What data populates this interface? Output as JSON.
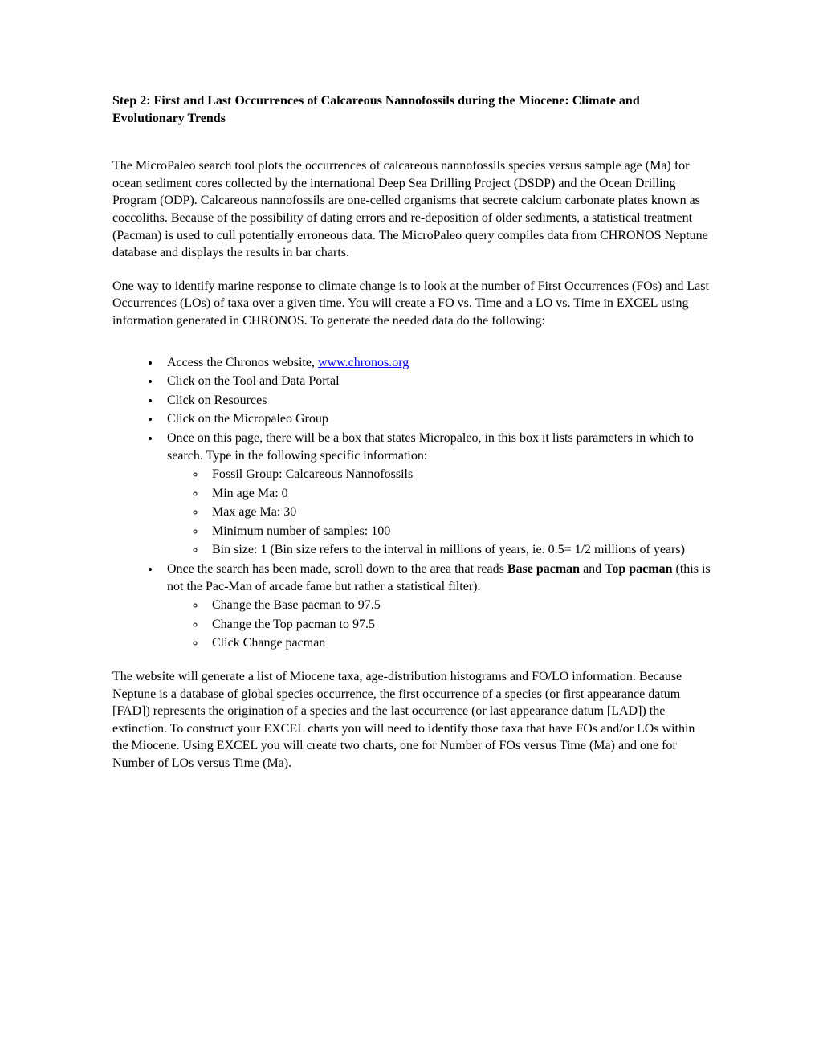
{
  "title": "Step 2: First and Last Occurrences of Calcareous Nannofossils during the Miocene: Climate and Evolutionary Trends",
  "paragraph1": "The MicroPaleo search tool plots the occurrences of calcareous nannofossils species versus sample age (Ma) for ocean sediment cores collected by the international Deep Sea Drilling Project (DSDP) and the Ocean Drilling Program (ODP).  Calcareous nannofossils are one-celled organisms that secrete calcium carbonate plates known as coccoliths.  Because of the possibility of dating errors and re-deposition of older sediments, a statistical treatment (Pacman) is used to cull potentially erroneous data. The MicroPaleo query compiles data from CHRONOS Neptune database and displays the results in bar charts.",
  "paragraph2": "One way to identify marine response to climate change is to look at the number of First Occurrences (FOs) and Last Occurrences (LOs) of taxa over a given time.  You will create a FO vs. Time and a LO vs. Time in EXCEL using information generated in CHRONOS.   To generate the needed data do the following:",
  "bullets": {
    "b1_pre": "Access the Chronos website, ",
    "b1_link": "www.chronos.org",
    "b2": "Click on the Tool and Data Portal",
    "b3": "Click on Resources",
    "b4": "Click on the Micropaleo Group",
    "b5": "Once on this page, there will be a box that states Micropaleo, in this box it lists parameters in which to search.  Type in the following specific information:",
    "b5_sub": {
      "s1_pre": "Fossil Group: ",
      "s1_under": "Calcareous Nannofossils",
      "s2": "Min age Ma:  0",
      "s3": "Max age Ma:  30",
      "s4": "Minimum number of samples: 100",
      "s5": " Bin size:  1  (Bin size refers to the interval in millions of years, ie. 0.5= 1/2 millions of years)"
    },
    "b6_pre": "Once the search has been made, scroll down to the area that reads ",
    "b6_bold1": "Base pacman",
    "b6_mid": " and ",
    "b6_bold2": "Top pacman",
    "b6_post": " (this is not the Pac-Man of arcade fame but rather a statistical filter).",
    "b6_sub": {
      "s1": "Change the Base pacman to 97.5",
      "s2": "Change the Top pacman to 97.5",
      "s3": "Click Change pacman"
    }
  },
  "paragraph3": "The website will generate a list of Miocene taxa, age-distribution histograms and FO/LO information.  Because Neptune is a database of global species occurrence, the first occurrence of a species (or first appearance datum [FAD]) represents the origination of a species and the last occurrence (or last appearance datum [LAD]) the extinction.  To construct your EXCEL charts you will need to identify those taxa that have FOs and/or LOs within the Miocene.  Using EXCEL you will create two charts, one for Number of FOs versus Time (Ma) and one for Number of LOs versus Time (Ma)."
}
